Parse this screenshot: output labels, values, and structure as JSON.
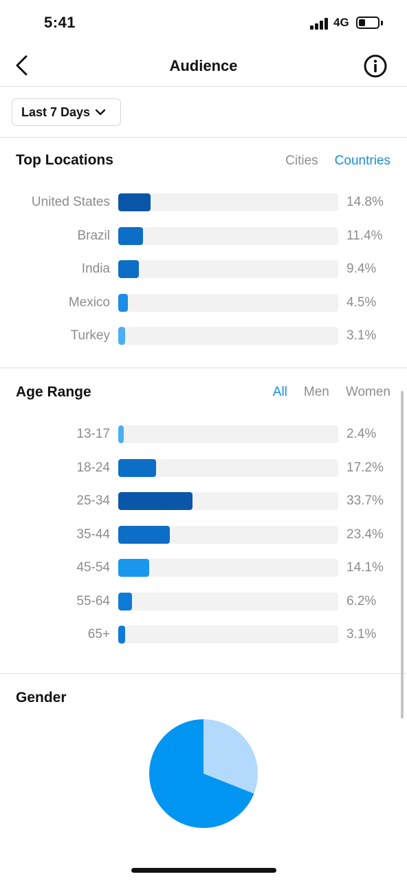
{
  "status_bar": {
    "time": "5:41",
    "network": "4G",
    "battery_level": 0.35
  },
  "header": {
    "title": "Audience"
  },
  "date_filter": {
    "label": "Last 7 Days"
  },
  "top_locations": {
    "title": "Top Locations",
    "tabs": [
      {
        "label": "Cities",
        "active": false
      },
      {
        "label": "Countries",
        "active": true
      }
    ],
    "items": [
      {
        "label": "United States",
        "value": "14.8%",
        "pct": 14.8,
        "color": "#0a56a8"
      },
      {
        "label": "Brazil",
        "value": "11.4%",
        "pct": 11.4,
        "color": "#0d6ec6"
      },
      {
        "label": "India",
        "value": "9.4%",
        "pct": 9.4,
        "color": "#0d6ec6"
      },
      {
        "label": "Mexico",
        "value": "4.5%",
        "pct": 4.5,
        "color": "#1a8ee8"
      },
      {
        "label": "Turkey",
        "value": "3.1%",
        "pct": 3.1,
        "color": "#4aaef5"
      }
    ]
  },
  "age_range": {
    "title": "Age Range",
    "tabs": [
      {
        "label": "All",
        "active": true
      },
      {
        "label": "Men",
        "active": false
      },
      {
        "label": "Women",
        "active": false
      }
    ],
    "items": [
      {
        "label": "13-17",
        "value": "2.4%",
        "pct": 2.4,
        "color": "#4aaef5"
      },
      {
        "label": "18-24",
        "value": "17.2%",
        "pct": 17.2,
        "color": "#0d6ec6"
      },
      {
        "label": "25-34",
        "value": "33.7%",
        "pct": 33.7,
        "color": "#0a56a8"
      },
      {
        "label": "35-44",
        "value": "23.4%",
        "pct": 23.4,
        "color": "#0d6ec6"
      },
      {
        "label": "45-54",
        "value": "14.1%",
        "pct": 14.1,
        "color": "#1996ee"
      },
      {
        "label": "55-64",
        "value": "6.2%",
        "pct": 6.2,
        "color": "#0e7bd8"
      },
      {
        "label": "65+",
        "value": "3.1%",
        "pct": 3.1,
        "color": "#0e7bd8"
      }
    ]
  },
  "gender": {
    "title": "Gender",
    "slices": [
      {
        "share": 0.31,
        "color": "#b3dafc"
      },
      {
        "share": 0.69,
        "color": "#0095f0"
      }
    ]
  }
}
